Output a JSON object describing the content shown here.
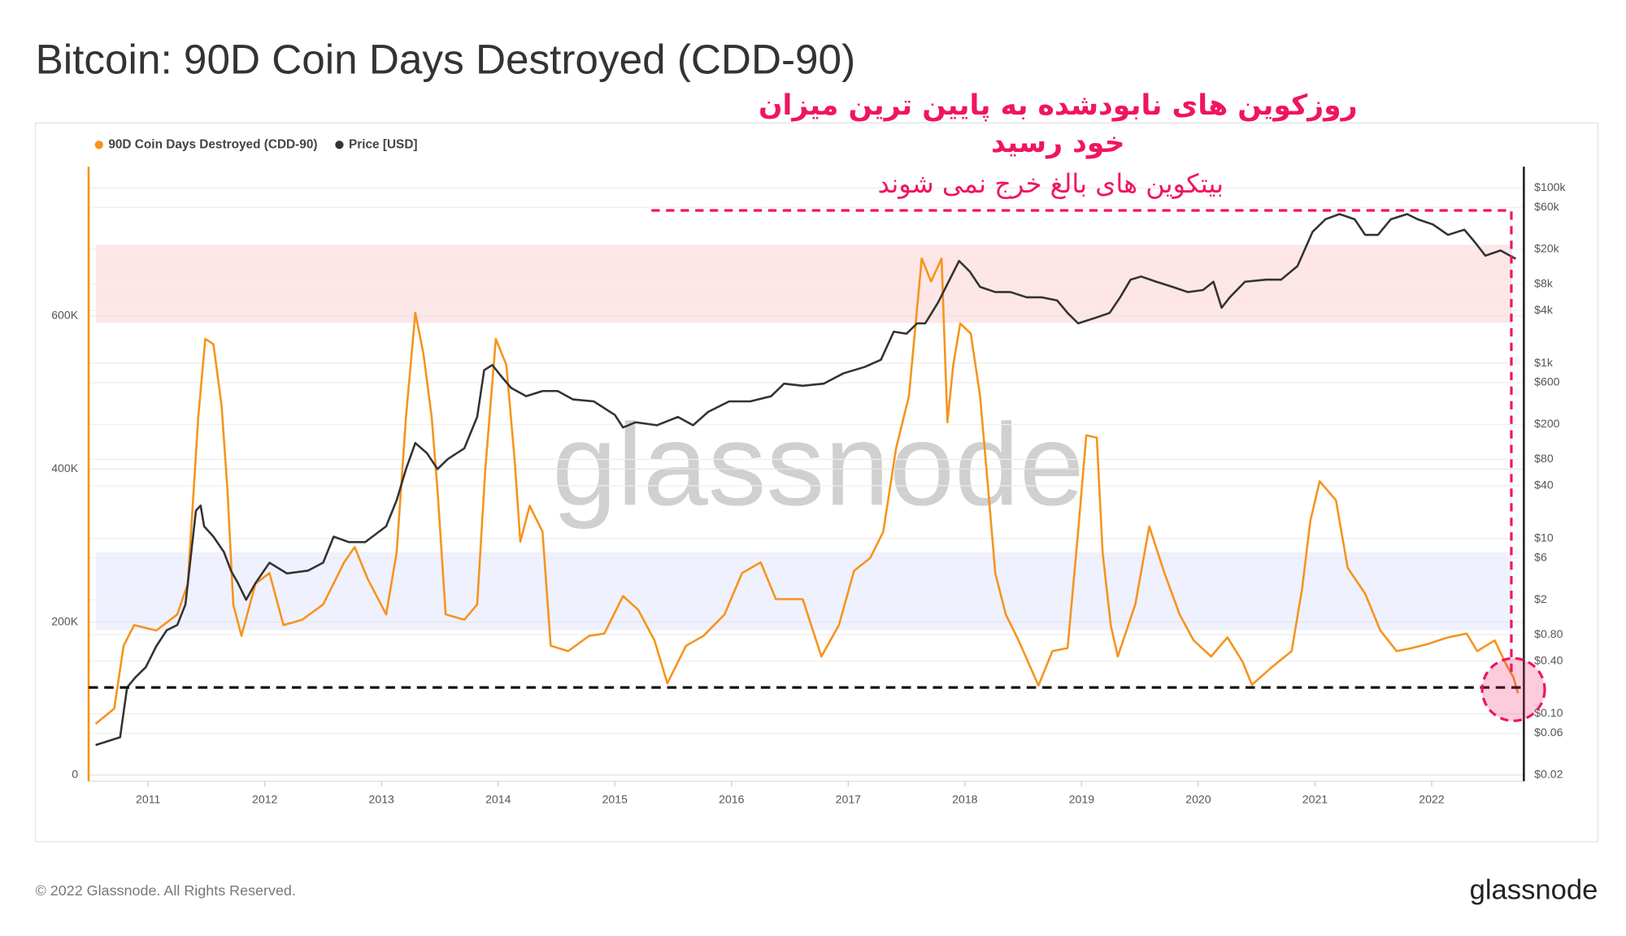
{
  "chart_data": {
    "type": "line",
    "title": "Bitcoin: 90D Coin Days Destroyed (CDD-90)",
    "watermark": "glassnode",
    "annotations": {
      "headline": [
        "روزکوین های نابودشده به پایین ترین میزان",
        "خود رسید"
      ],
      "subtitle": "بیتکوین های بالغ خرج نمی شوند"
    },
    "xlim": [
      2010.49,
      2022.79
    ],
    "xticks": [
      2011,
      2012,
      2013,
      2014,
      2015,
      2016,
      2017,
      2018,
      2019,
      2020,
      2021,
      2022
    ],
    "ylim": [
      -8000,
      795000
    ],
    "yticks": [
      0,
      {
        "value": 200000,
        "label": "200K"
      },
      {
        "value": 400000,
        "label": "400K"
      },
      {
        "value": 600000,
        "label": "600K"
      }
    ],
    "y2log": true,
    "y2lim": [
      0.017,
      175000
    ],
    "y2ticks": [
      {
        "value": 100000,
        "label": "$100k"
      },
      {
        "value": 60000,
        "label": "$60k"
      },
      {
        "value": 20000,
        "label": "$20k"
      },
      {
        "value": 8000,
        "label": "$8k"
      },
      {
        "value": 4000,
        "label": "$4k"
      },
      {
        "value": 1000,
        "label": "$1k"
      },
      {
        "value": 600,
        "label": "$600"
      },
      {
        "value": 200,
        "label": "$200"
      },
      {
        "value": 80,
        "label": "$80"
      },
      {
        "value": 40,
        "label": "$40"
      },
      {
        "value": 10,
        "label": "$10"
      },
      {
        "value": 6,
        "label": "$6"
      },
      {
        "value": 2,
        "label": "$2"
      },
      {
        "value": 0.8,
        "label": "$0.80"
      },
      {
        "value": 0.4,
        "label": "$0.40"
      },
      {
        "value": 0.1,
        "label": "$0.10"
      },
      {
        "value": 0.06,
        "label": "$0.06"
      },
      {
        "value": 0.02,
        "label": "$0.02"
      }
    ],
    "series": [
      {
        "name": "90D Coin Days Destroyed (CDD-90)",
        "color": "#f7931a",
        "x": [
          2010.55,
          2010.71,
          2010.79,
          2010.88,
          2011.07,
          2011.25,
          2011.34,
          2011.43,
          2011.49,
          2011.56,
          2011.63,
          2011.68,
          2011.73,
          2011.8,
          2011.92,
          2012.04,
          2012.16,
          2012.32,
          2012.5,
          2012.68,
          2012.77,
          2012.88,
          2013.04,
          2013.13,
          2013.21,
          2013.29,
          2013.36,
          2013.43,
          2013.48,
          2013.55,
          2013.71,
          2013.82,
          2013.89,
          2013.98,
          2014.07,
          2014.14,
          2014.19,
          2014.27,
          2014.38,
          2014.45,
          2014.6,
          2014.78,
          2014.91,
          2015.07,
          2015.2,
          2015.34,
          2015.45,
          2015.61,
          2015.76,
          2015.94,
          2016.09,
          2016.25,
          2016.38,
          2016.61,
          2016.77,
          2016.92,
          2017.05,
          2017.19,
          2017.3,
          2017.41,
          2017.52,
          2017.57,
          2017.63,
          2017.71,
          2017.8,
          2017.85,
          2017.9,
          2017.96,
          2018.05,
          2018.13,
          2018.2,
          2018.26,
          2018.35,
          2018.46,
          2018.63,
          2018.75,
          2018.88,
          2018.97,
          2019.04,
          2019.13,
          2019.18,
          2019.25,
          2019.31,
          2019.46,
          2019.58,
          2019.71,
          2019.84,
          2019.96,
          2020.11,
          2020.25,
          2020.38,
          2020.46,
          2020.63,
          2020.8,
          2020.89,
          2020.96,
          2021.04,
          2021.18,
          2021.28,
          2021.43,
          2021.56,
          2021.7,
          2021.83,
          2021.96,
          2022.14,
          2022.3,
          2022.39,
          2022.54,
          2022.64,
          2022.7,
          2022.74
        ],
        "values": [
          67000,
          87000,
          169000,
          196000,
          189000,
          210000,
          250000,
          468000,
          570000,
          563000,
          482000,
          373000,
          223000,
          182000,
          250000,
          264000,
          196000,
          203000,
          223000,
          278000,
          298000,
          257000,
          210000,
          291000,
          468000,
          604000,
          550000,
          468000,
          373000,
          210000,
          203000,
          223000,
          400000,
          570000,
          536000,
          414000,
          305000,
          352000,
          318000,
          169000,
          162000,
          182000,
          185000,
          234000,
          216000,
          176000,
          120000,
          169000,
          182000,
          210000,
          264000,
          278000,
          230000,
          230000,
          155000,
          196000,
          267000,
          284000,
          318000,
          427000,
          495000,
          577000,
          675000,
          645000,
          675000,
          461000,
          536000,
          590000,
          577000,
          495000,
          373000,
          264000,
          210000,
          176000,
          117000,
          162000,
          166000,
          318000,
          444000,
          441000,
          291000,
          196000,
          155000,
          223000,
          325000,
          264000,
          210000,
          176000,
          155000,
          180000,
          148000,
          118000,
          141000,
          162000,
          244000,
          332000,
          384000,
          359000,
          271000,
          237000,
          189000,
          162000,
          166000,
          171000,
          180000,
          185000,
          162000,
          176000,
          144000,
          128000,
          107000
        ]
      },
      {
        "name": "Price [USD]",
        "color": "#333333",
        "axis": "y2",
        "x": [
          2010.55,
          2010.76,
          2010.82,
          2010.89,
          2010.98,
          2011.07,
          2011.16,
          2011.25,
          2011.32,
          2011.37,
          2011.41,
          2011.45,
          2011.48,
          2011.56,
          2011.65,
          2011.71,
          2011.77,
          2011.84,
          2011.92,
          2012.04,
          2012.19,
          2012.37,
          2012.5,
          2012.59,
          2012.72,
          2012.86,
          2013.04,
          2013.13,
          2013.21,
          2013.29,
          2013.39,
          2013.48,
          2013.57,
          2013.71,
          2013.82,
          2013.88,
          2013.95,
          2014.02,
          2014.11,
          2014.24,
          2014.38,
          2014.51,
          2014.64,
          2014.82,
          2015.0,
          2015.07,
          2015.18,
          2015.36,
          2015.54,
          2015.67,
          2015.8,
          2015.98,
          2016.16,
          2016.34,
          2016.45,
          2016.61,
          2016.79,
          2016.96,
          2017.14,
          2017.28,
          2017.39,
          2017.5,
          2017.59,
          2017.66,
          2017.77,
          2017.86,
          2017.95,
          2018.04,
          2018.13,
          2018.26,
          2018.39,
          2018.53,
          2018.66,
          2018.79,
          2018.88,
          2018.97,
          2019.11,
          2019.24,
          2019.33,
          2019.42,
          2019.51,
          2019.64,
          2019.78,
          2019.91,
          2020.04,
          2020.13,
          2020.2,
          2020.27,
          2020.4,
          2020.58,
          2020.71,
          2020.85,
          2020.98,
          2021.09,
          2021.21,
          2021.34,
          2021.43,
          2021.54,
          2021.65,
          2021.79,
          2021.88,
          2022.01,
          2022.14,
          2022.28,
          2022.37,
          2022.46,
          2022.59,
          2022.72
        ],
        "values": [
          0.044,
          0.054,
          0.2,
          0.26,
          0.34,
          0.59,
          0.9,
          1.03,
          1.77,
          7.0,
          20.8,
          23.8,
          13.8,
          10.5,
          7.0,
          4.3,
          3.1,
          2.0,
          3.1,
          5.3,
          4.0,
          4.3,
          5.3,
          10.5,
          9.1,
          9.1,
          13.8,
          27.3,
          62,
          123,
          94,
          62,
          81,
          107,
          244,
          834,
          955,
          727,
          524,
          421,
          482,
          482,
          387,
          367,
          257,
          185,
          212,
          196,
          244,
          196,
          279,
          367,
          367,
          421,
          585,
          553,
          585,
          768,
          906,
          1096,
          2291,
          2173,
          2851,
          2851,
          4932,
          8511,
          14720,
          11190,
          7430,
          6490,
          6490,
          5650,
          5650,
          5210,
          3750,
          2851,
          3270,
          3750,
          5650,
          8990,
          9770,
          8511,
          7430,
          6490,
          6840,
          8511,
          4300,
          5650,
          8511,
          8990,
          8990,
          12850,
          31700,
          43950,
          50350,
          43950,
          29170,
          29170,
          43950,
          50350,
          43950,
          38370,
          29170,
          33420,
          24100,
          16870,
          19360,
          15560
        ]
      }
    ]
  },
  "footer": {
    "copyright": "© 2022 Glassnode. All Rights Reserved.",
    "logo": "glassnode"
  }
}
